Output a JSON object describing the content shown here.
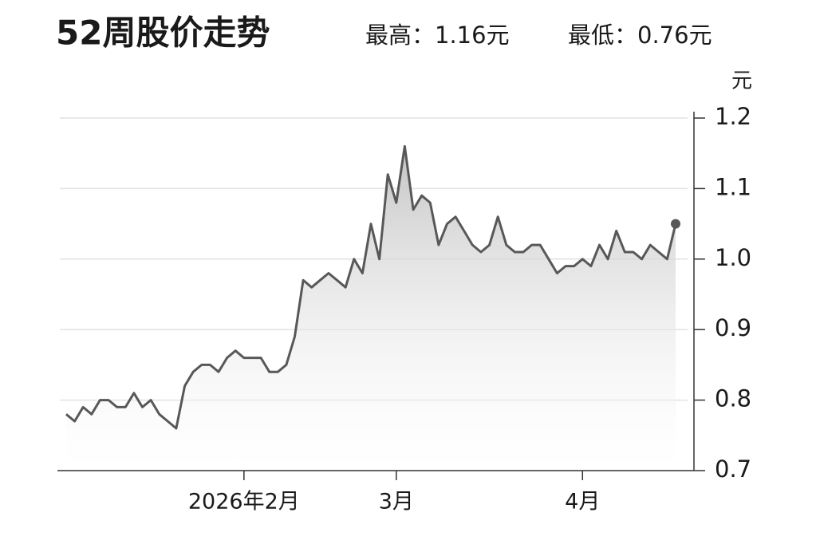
{
  "chart_data": {
    "type": "line",
    "title": "52周股价走势",
    "annotations": [
      "最高：1.16元",
      "最低：0.76元"
    ],
    "y_label": "元",
    "categories": [
      null,
      null,
      null,
      null,
      null,
      null,
      null,
      null,
      null,
      null,
      null,
      null,
      null,
      null,
      null,
      null,
      null,
      null,
      null,
      null,
      null,
      "2026年2月",
      null,
      null,
      null,
      null,
      null,
      null,
      null,
      null,
      null,
      null,
      null,
      null,
      null,
      null,
      null,
      null,
      null,
      "3月",
      null,
      null,
      null,
      null,
      null,
      null,
      null,
      null,
      null,
      null,
      null,
      null,
      null,
      null,
      null,
      null,
      null,
      null,
      null,
      null,
      null,
      "4月",
      null,
      null,
      null,
      null,
      null,
      null,
      null,
      null,
      null,
      null,
      null
    ],
    "values": [
      0.78,
      0.77,
      0.79,
      0.78,
      0.8,
      0.8,
      0.79,
      0.79,
      0.81,
      0.79,
      0.8,
      0.78,
      0.77,
      0.76,
      0.82,
      0.84,
      0.85,
      0.85,
      0.84,
      0.86,
      0.87,
      0.86,
      0.86,
      0.86,
      0.84,
      0.84,
      0.85,
      0.89,
      0.97,
      0.96,
      0.97,
      0.98,
      0.97,
      0.96,
      1.0,
      0.98,
      1.05,
      1.0,
      1.12,
      1.08,
      1.16,
      1.07,
      1.09,
      1.08,
      1.02,
      1.05,
      1.06,
      1.04,
      1.02,
      1.01,
      1.02,
      1.06,
      1.02,
      1.01,
      1.01,
      1.02,
      1.02,
      1.0,
      0.98,
      0.99,
      0.99,
      1.0,
      0.99,
      1.02,
      1.0,
      1.04,
      1.01,
      1.01,
      1.0,
      1.02,
      1.01,
      1.0,
      1.05
    ],
    "color": "#585858",
    "ylim": [
      0.7,
      1.2
    ],
    "yticks": [
      0.7,
      0.8,
      0.9,
      {
        "value": 1,
        "label": "1.0"
      },
      1.1,
      1.2
    ],
    "grid": true
  }
}
